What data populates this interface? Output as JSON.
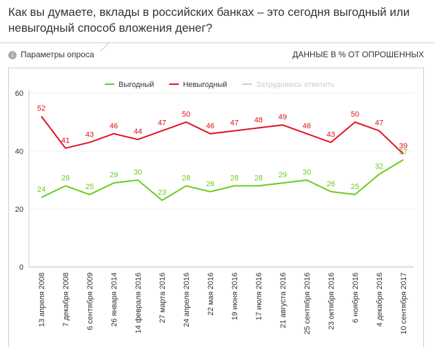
{
  "header": {
    "title": "Как вы думаете, вклады в российских банках – это сегодня выгодный или невыгодный способ вложения денег?",
    "params": "Параметры опроса",
    "units": "ДАННЫЕ В % ОТ ОПРОШЕННЫХ"
  },
  "chart_data": {
    "type": "line",
    "categories": [
      "13 апреля 2008",
      "7 декабря 2008",
      "6 сентября 2009",
      "26 января 2014",
      "14 февраля 2016",
      "27 марта 2016",
      "24 апреля 2016",
      "22 мая 2016",
      "19 июня 2016",
      "17 июля 2016",
      "21 августа 2016",
      "25 сентября 2016",
      "23 октября 2016",
      "6 ноября 2016",
      "4 декабря 2016",
      "10 сентября 2017"
    ],
    "series": [
      {
        "name": "Выгодный",
        "color": "#66cc1a",
        "values": [
          24,
          28,
          25,
          29,
          30,
          23,
          28,
          26,
          28,
          28,
          29,
          30,
          26,
          25,
          32,
          37
        ]
      },
      {
        "name": "Невыгодный",
        "color": "#e0101e",
        "values": [
          52,
          41,
          43,
          46,
          44,
          47,
          50,
          46,
          47,
          48,
          49,
          46,
          43,
          50,
          47,
          39
        ]
      },
      {
        "name": "Затрудняюсь ответить",
        "color": "#cccccc",
        "values": [
          null,
          null,
          null,
          null,
          null,
          null,
          null,
          null,
          null,
          null,
          null,
          null,
          null,
          null,
          null,
          null
        ]
      }
    ],
    "ylim": [
      0,
      60
    ],
    "yticks": [
      0,
      20,
      40,
      60
    ],
    "grid": true
  }
}
